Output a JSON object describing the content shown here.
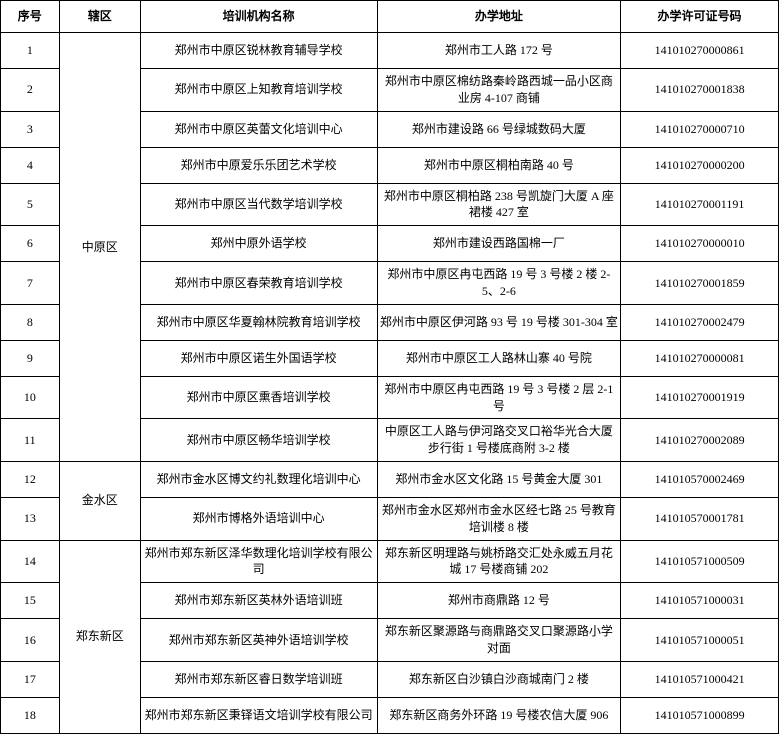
{
  "headers": {
    "seq": "序号",
    "district": "辖区",
    "name": "培训机构名称",
    "address": "办学地址",
    "license": "办学许可证号码"
  },
  "districts": [
    {
      "name": "中原区",
      "startRow": 1,
      "span": 11
    },
    {
      "name": "金水区",
      "startRow": 12,
      "span": 2
    },
    {
      "name": "郑东新区",
      "startRow": 14,
      "span": 5
    }
  ],
  "rows": [
    {
      "seq": "1",
      "name": "郑州市中原区锐林教育辅导学校",
      "address": "郑州市工人路 172 号",
      "license": "141010270000861"
    },
    {
      "seq": "2",
      "name": "郑州市中原区上知教育培训学校",
      "address": "郑州市中原区棉纺路秦岭路西城一品小区商业房 4-107 商铺",
      "license": "141010270001838"
    },
    {
      "seq": "3",
      "name": "郑州市中原区英蕾文化培训中心",
      "address": "郑州市建设路 66 号绿城数码大厦",
      "license": "141010270000710"
    },
    {
      "seq": "4",
      "name": "郑州市中原爱乐乐团艺术学校",
      "address": "郑州市中原区桐柏南路 40 号",
      "license": "141010270000200"
    },
    {
      "seq": "5",
      "name": "郑州市中原区当代数学培训学校",
      "address": "郑州市中原区桐柏路 238 号凯旋门大厦 A 座裙楼 427 室",
      "license": "141010270001191"
    },
    {
      "seq": "6",
      "name": "郑州中原外语学校",
      "address": "郑州市建设西路国棉一厂",
      "license": "141010270000010"
    },
    {
      "seq": "7",
      "name": "郑州市中原区春荣教育培训学校",
      "address": "郑州市中原区冉屯西路 19 号 3 号楼 2 楼 2-5、2-6",
      "license": "141010270001859"
    },
    {
      "seq": "8",
      "name": "郑州市中原区华夏翰林院教育培训学校",
      "address": "郑州市中原区伊河路 93 号 19 号楼 301-304 室",
      "license": "141010270002479"
    },
    {
      "seq": "9",
      "name": "郑州市中原区诺生外国语学校",
      "address": "郑州市中原区工人路林山寨 40 号院",
      "license": "141010270000081"
    },
    {
      "seq": "10",
      "name": "郑州市中原区熏香培训学校",
      "address": "郑州市中原区冉屯西路 19 号 3 号楼 2 层 2-1 号",
      "license": "141010270001919"
    },
    {
      "seq": "11",
      "name": "郑州市中原区畅华培训学校",
      "address": "中原区工人路与伊河路交叉口裕华光合大厦步行街 1 号楼底商附 3-2 楼",
      "license": "141010270002089"
    },
    {
      "seq": "12",
      "name": "郑州市金水区博文约礼数理化培训中心",
      "address": "郑州市金水区文化路 15 号黄金大厦 301",
      "license": "141010570002469"
    },
    {
      "seq": "13",
      "name": "郑州市博格外语培训中心",
      "address": "郑州市金水区郑州市金水区经七路 25 号教育培训楼 8 楼",
      "license": "141010570001781"
    },
    {
      "seq": "14",
      "name": "郑州市郑东新区泽华数理化培训学校有限公司",
      "address": "郑东新区明理路与姚桥路交汇处永威五月花城 17 号楼商铺 202",
      "license": "141010571000509"
    },
    {
      "seq": "15",
      "name": "郑州市郑东新区英林外语培训班",
      "address": "郑州市商鼎路 12 号",
      "license": "141010571000031"
    },
    {
      "seq": "16",
      "name": "郑州市郑东新区英神外语培训学校",
      "address": "郑东新区聚源路与商鼎路交叉口聚源路小学对面",
      "license": "141010571000051"
    },
    {
      "seq": "17",
      "name": "郑州市郑东新区睿日数学培训班",
      "address": "郑东新区白沙镇白沙商城南门 2 楼",
      "license": "141010571000421"
    },
    {
      "seq": "18",
      "name": "郑州市郑东新区秉铎语文培训学校有限公司",
      "address": "郑东新区商务外环路 19 号楼农信大厦 906",
      "license": "141010571000899"
    }
  ]
}
